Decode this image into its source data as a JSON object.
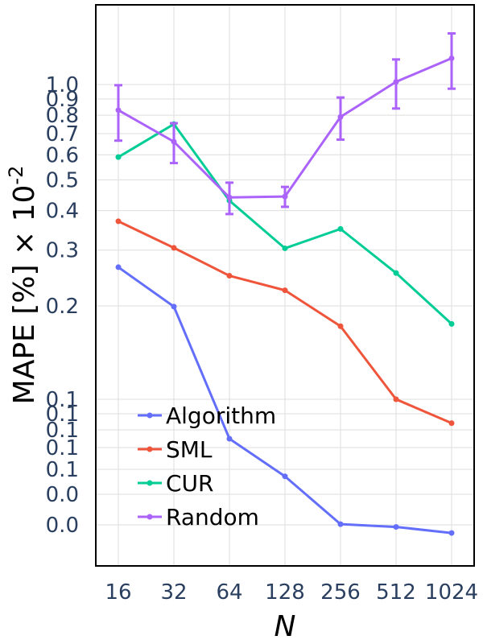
{
  "chart_data": {
    "type": "line",
    "x_label": "N",
    "y_label_base": "MAPE [%] × 10",
    "y_label_exp": "-2",
    "y_scale": "log",
    "grid": true,
    "legend_position": "bottom-left",
    "x": [
      16,
      32,
      64,
      128,
      256,
      512,
      1024
    ],
    "x_tick_labels": [
      "16",
      "32",
      "64",
      "128",
      "256",
      "512",
      "1024"
    ],
    "y_ticks_upper": [
      {
        "value": 1.0,
        "label": "1.0"
      },
      {
        "value": 0.9,
        "label": "0.9"
      },
      {
        "value": 0.8,
        "label": "0.8"
      },
      {
        "value": 0.7,
        "label": "0.7"
      },
      {
        "value": 0.6,
        "label": "0.6"
      },
      {
        "value": 0.5,
        "label": "0.5"
      },
      {
        "value": 0.4,
        "label": "0.4"
      },
      {
        "value": 0.3,
        "label": "0.3"
      },
      {
        "value": 0.2,
        "label": "0.2"
      }
    ],
    "y_ticks_lower": [
      {
        "value": 0.1,
        "label": "0.1"
      },
      {
        "value": 0.09,
        "label": "0.1"
      },
      {
        "value": 0.08,
        "label": "0.1"
      },
      {
        "value": 0.07,
        "label": "0.1"
      },
      {
        "value": 0.06,
        "label": "0.1"
      },
      {
        "value": 0.05,
        "label": "0.0"
      },
      {
        "value": 0.04,
        "label": "0.0"
      }
    ],
    "series": [
      {
        "name": "Algorithm",
        "color": "#636efa",
        "values": [
          0.265,
          0.199,
          0.075,
          0.057,
          0.0402,
          0.0394,
          0.0377
        ]
      },
      {
        "name": "SML",
        "color": "#ef553b",
        "values": [
          0.37,
          0.305,
          0.249,
          0.224,
          0.172,
          0.1,
          0.084
        ]
      },
      {
        "name": "CUR",
        "color": "#00cc96",
        "values": [
          0.59,
          0.75,
          0.43,
          0.304,
          0.35,
          0.254,
          0.175
        ]
      },
      {
        "name": "Random",
        "color": "#ab63fa",
        "values": [
          0.83,
          0.66,
          0.44,
          0.443,
          0.79,
          1.02,
          1.21
        ],
        "error": [
          0.165,
          0.095,
          0.05,
          0.032,
          0.12,
          0.18,
          0.24
        ]
      }
    ]
  }
}
